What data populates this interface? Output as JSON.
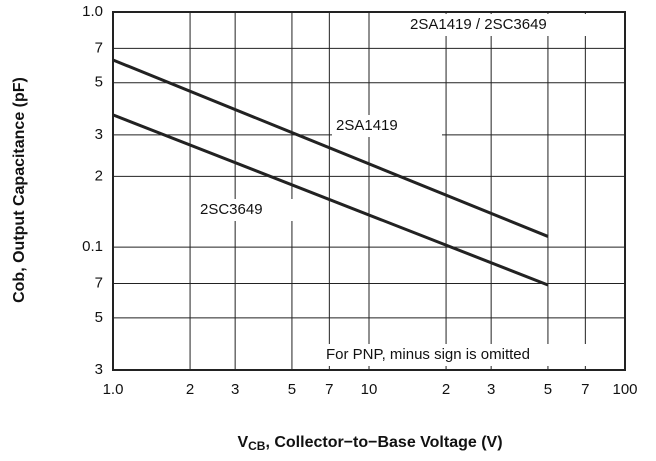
{
  "chart_data": {
    "type": "line",
    "title": "2SA1419 / 2SC3649",
    "y_label": "Cob, Output Capacitance (pF)",
    "x_label": {
      "symbol": "V",
      "subscript": "CB",
      "text": ", Collector−to−Base Voltage (V)"
    },
    "annotations": [
      "2SA1419",
      "2SC3649",
      "For PNP, minus sign is omitted"
    ],
    "log_x": true,
    "log_y": true,
    "grid": true,
    "xlim": [
      1,
      100
    ],
    "ylim": [
      0.03,
      1
    ],
    "xticks": [
      {
        "value": 1,
        "label": "1.0"
      },
      2,
      3,
      5,
      7,
      10,
      {
        "value": 20,
        "label": "2"
      },
      {
        "value": 30,
        "label": "3"
      },
      {
        "value": 50,
        "label": "5"
      },
      {
        "value": 70,
        "label": "7"
      },
      100
    ],
    "yticks": [
      {
        "value": 1,
        "label": "1.0"
      },
      {
        "value": 0.7,
        "label": "7"
      },
      {
        "value": 0.5,
        "label": "5"
      },
      {
        "value": 0.3,
        "label": "3"
      },
      {
        "value": 0.2,
        "label": "2"
      },
      0.1,
      {
        "value": 0.07,
        "label": "7"
      },
      {
        "value": 0.05,
        "label": "5"
      },
      {
        "value": 0.03,
        "label": "3"
      }
    ],
    "series": [
      {
        "name": "2SA1419",
        "color": "#222222",
        "x": [
          1,
          50
        ],
        "values": [
          0.625,
          0.111
        ]
      },
      {
        "name": "2SC3649",
        "color": "#222222",
        "x": [
          1,
          50
        ],
        "values": [
          0.365,
          0.069
        ]
      }
    ]
  }
}
